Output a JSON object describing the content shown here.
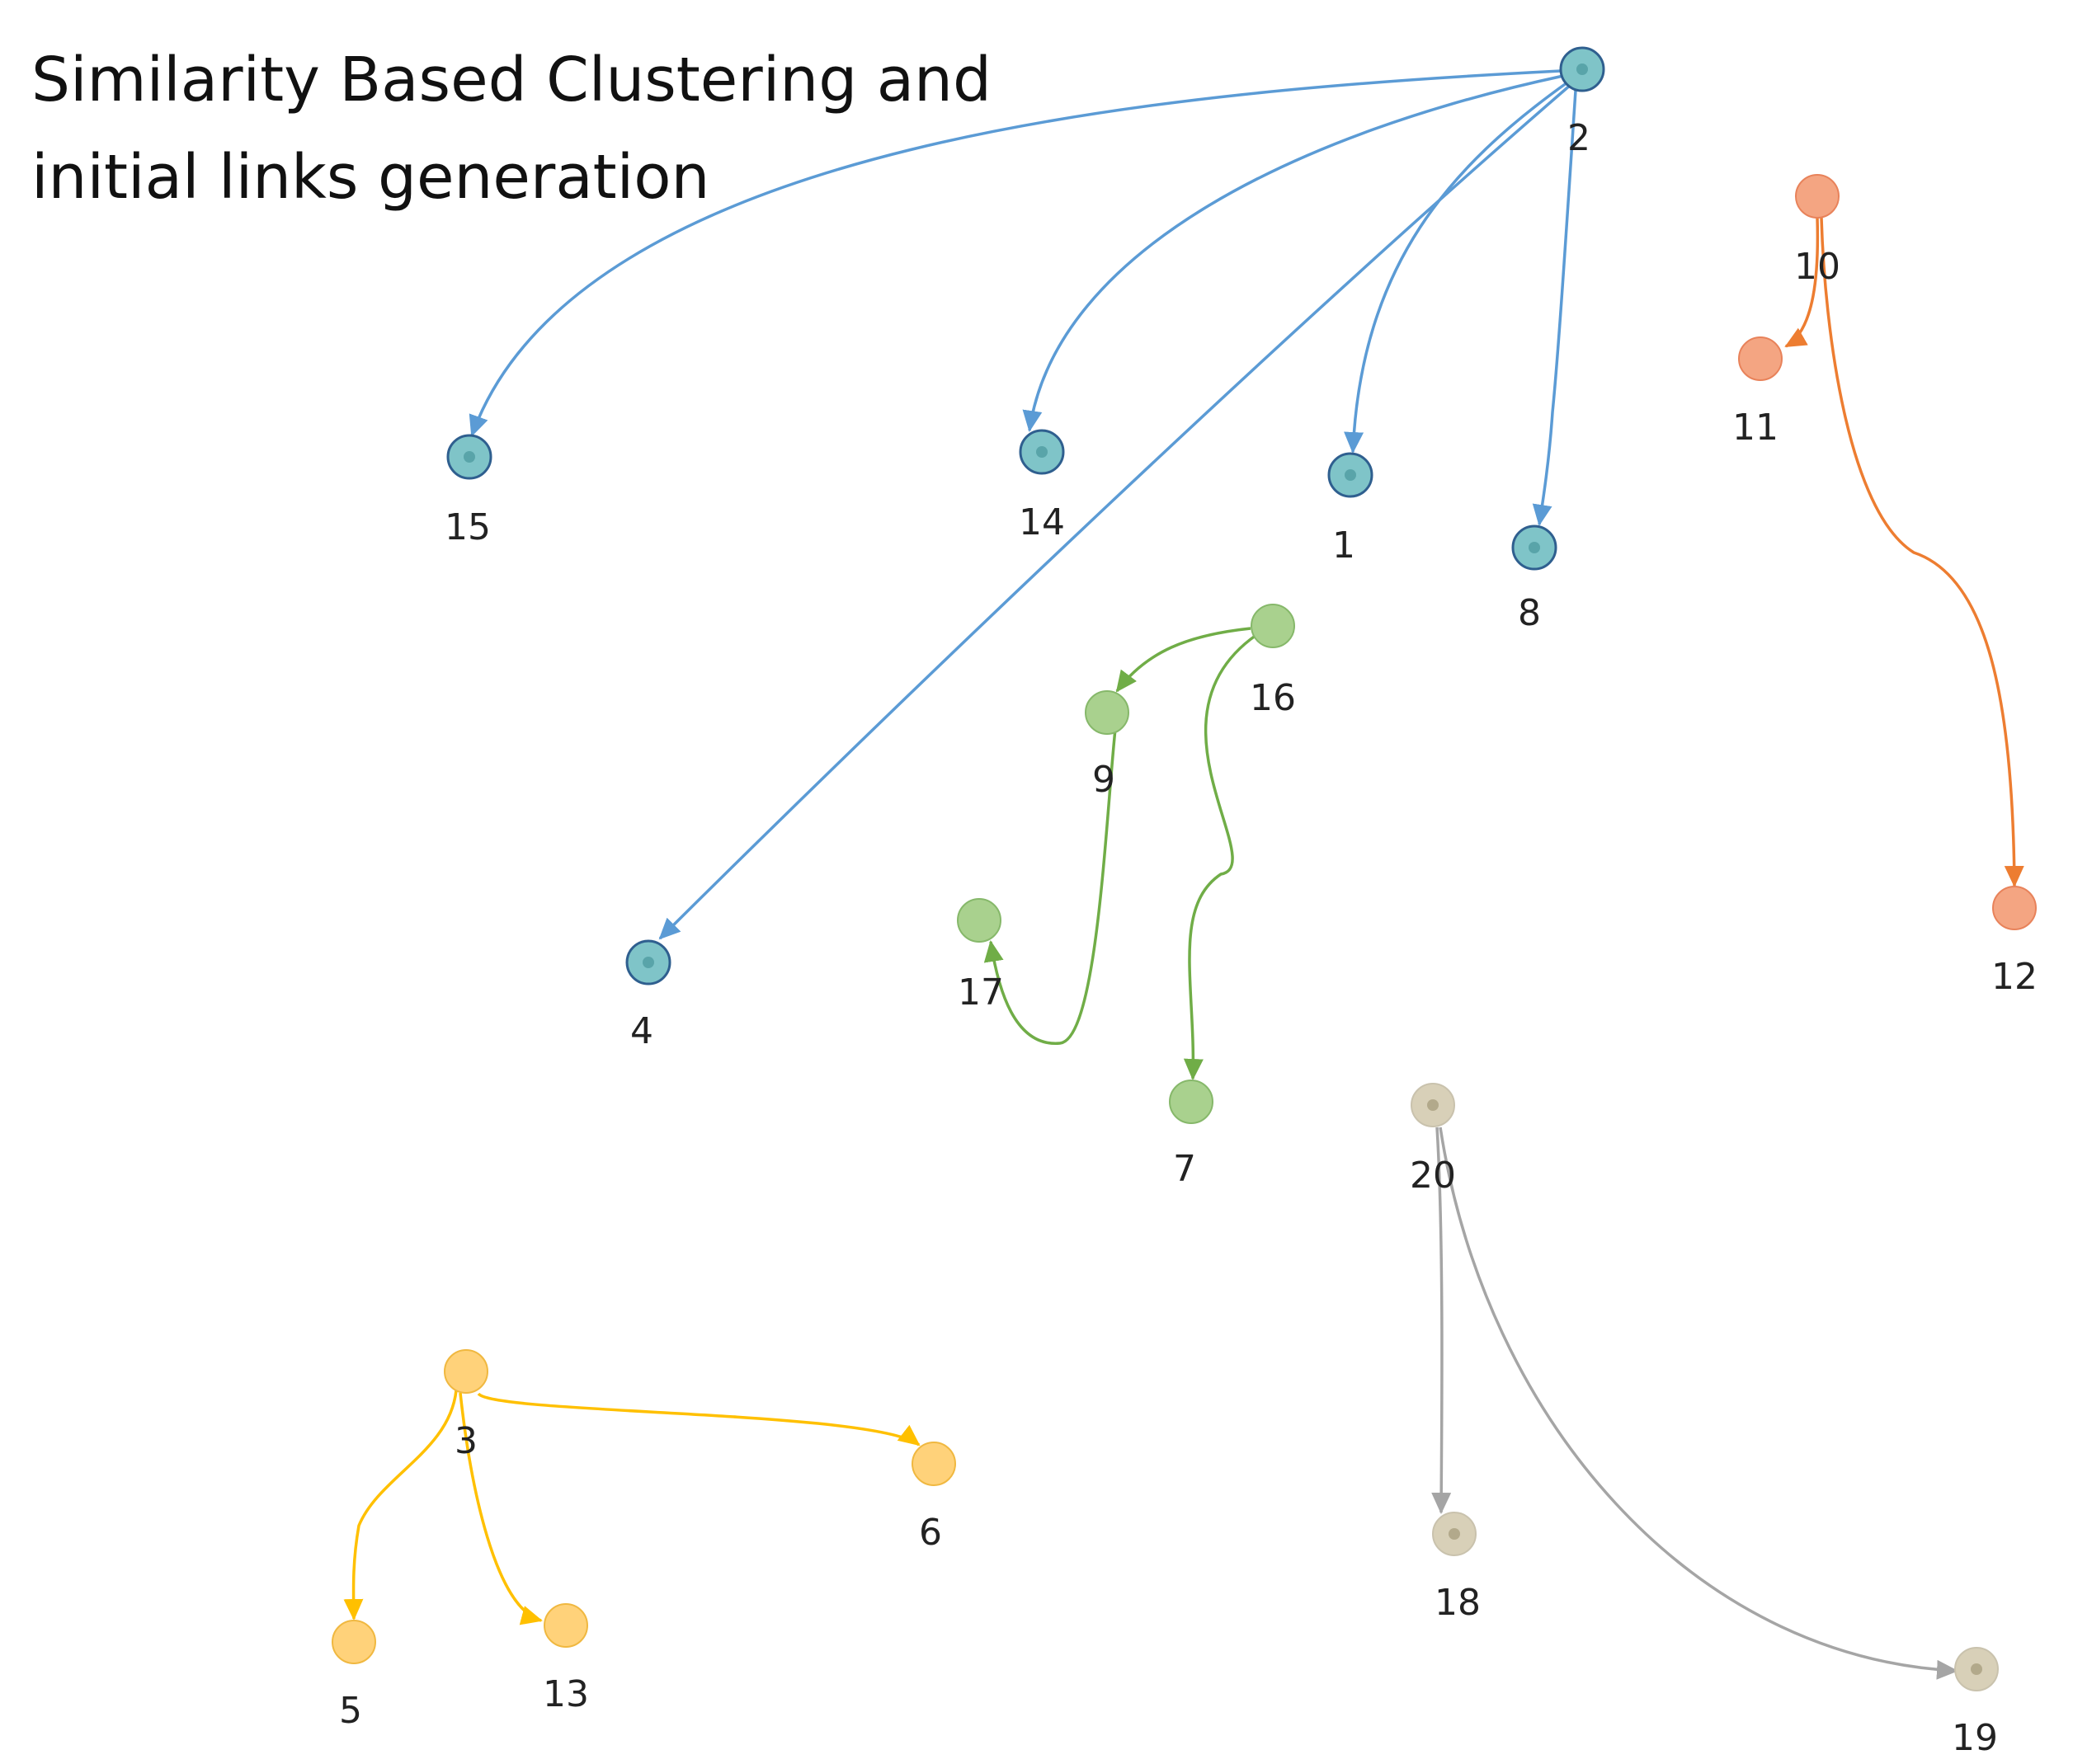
{
  "title": {
    "line1": "Similarity Based  Clustering  and",
    "line2": "initial links generation"
  },
  "clusters": [
    {
      "id": "blue",
      "fill": "#7fc4c8",
      "stroke": "#2f5f8f",
      "edge_color": "#5b9bd5"
    },
    {
      "id": "orange",
      "fill": "#f4a582",
      "stroke": "#e8825a",
      "edge_color": "#ed7d31"
    },
    {
      "id": "green",
      "fill": "#a9d18e",
      "stroke": "#86b86a",
      "edge_color": "#70ad47"
    },
    {
      "id": "yellow",
      "fill": "#ffd27a",
      "stroke": "#f0b840",
      "edge_color": "#ffc000"
    },
    {
      "id": "gray",
      "fill": "#d8d0b8",
      "stroke": "#c9c2ad",
      "edge_color": "#a5a5a5"
    }
  ],
  "nodes": [
    {
      "id": "2",
      "label": "2",
      "cluster": "blue"
    },
    {
      "id": "15",
      "label": "15",
      "cluster": "blue"
    },
    {
      "id": "14",
      "label": "14",
      "cluster": "blue"
    },
    {
      "id": "1",
      "label": "1",
      "cluster": "blue"
    },
    {
      "id": "8",
      "label": "8",
      "cluster": "blue"
    },
    {
      "id": "4",
      "label": "4",
      "cluster": "blue"
    },
    {
      "id": "10",
      "label": "10",
      "cluster": "orange"
    },
    {
      "id": "11",
      "label": "11",
      "cluster": "orange"
    },
    {
      "id": "12",
      "label": "12",
      "cluster": "orange"
    },
    {
      "id": "16",
      "label": "16",
      "cluster": "green"
    },
    {
      "id": "9",
      "label": "9",
      "cluster": "green"
    },
    {
      "id": "17",
      "label": "17",
      "cluster": "green"
    },
    {
      "id": "7",
      "label": "7",
      "cluster": "green"
    },
    {
      "id": "3",
      "label": "3",
      "cluster": "yellow"
    },
    {
      "id": "6",
      "label": "6",
      "cluster": "yellow"
    },
    {
      "id": "5",
      "label": "5",
      "cluster": "yellow"
    },
    {
      "id": "13",
      "label": "13",
      "cluster": "yellow"
    },
    {
      "id": "20",
      "label": "20",
      "cluster": "gray"
    },
    {
      "id": "18",
      "label": "18",
      "cluster": "gray"
    },
    {
      "id": "19",
      "label": "19",
      "cluster": "gray"
    }
  ],
  "edges": [
    {
      "from": "2",
      "to": "15",
      "cluster": "blue"
    },
    {
      "from": "2",
      "to": "14",
      "cluster": "blue"
    },
    {
      "from": "2",
      "to": "1",
      "cluster": "blue"
    },
    {
      "from": "2",
      "to": "8",
      "cluster": "blue"
    },
    {
      "from": "2",
      "to": "4",
      "cluster": "blue"
    },
    {
      "from": "10",
      "to": "11",
      "cluster": "orange"
    },
    {
      "from": "10",
      "to": "12",
      "cluster": "orange"
    },
    {
      "from": "16",
      "to": "9",
      "cluster": "green"
    },
    {
      "from": "16",
      "to": "7",
      "cluster": "green"
    },
    {
      "from": "9",
      "to": "17",
      "cluster": "green"
    },
    {
      "from": "3",
      "to": "6",
      "cluster": "yellow"
    },
    {
      "from": "3",
      "to": "5",
      "cluster": "yellow"
    },
    {
      "from": "3",
      "to": "13",
      "cluster": "yellow"
    },
    {
      "from": "20",
      "to": "18",
      "cluster": "gray"
    },
    {
      "from": "20",
      "to": "19",
      "cluster": "gray"
    }
  ]
}
